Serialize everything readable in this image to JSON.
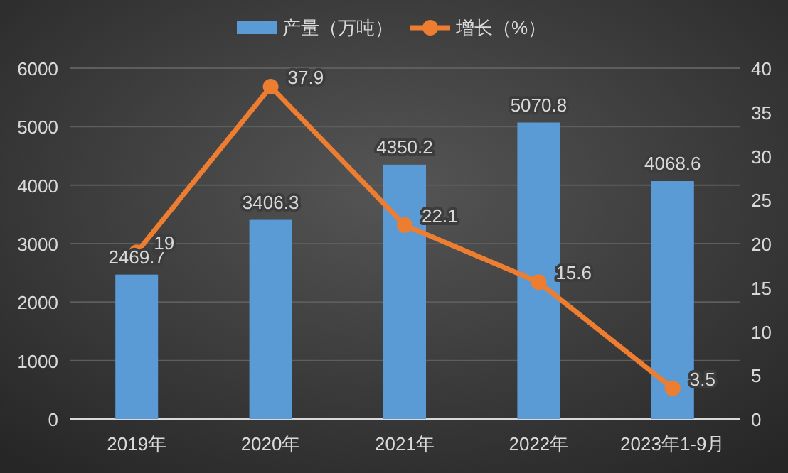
{
  "chart_data": {
    "type": "bar",
    "categories": [
      "2019年",
      "2020年",
      "2021年",
      "2022年",
      "2023年1-9月"
    ],
    "series": [
      {
        "name": "产量（万吨）",
        "color": "#5b9bd5",
        "values": [
          2469.7,
          3406.3,
          4350.2,
          5070.8,
          4068.6
        ]
      },
      {
        "name": "增长（%）",
        "type": "line",
        "axis": "y2",
        "color": "#ed7d31",
        "values": [
          19,
          37.9,
          22.1,
          15.6,
          3.5
        ]
      }
    ],
    "ylim": [
      0,
      6000
    ],
    "yticks": [
      0,
      1000,
      2000,
      3000,
      4000,
      5000,
      6000
    ],
    "y2lim": [
      0,
      40
    ],
    "y2ticks": [
      0,
      5,
      10,
      15,
      20,
      25,
      30,
      35,
      40
    ],
    "grid": "y",
    "legend": "top",
    "marker": "circle",
    "line_style": "solid",
    "data_labels": true
  }
}
